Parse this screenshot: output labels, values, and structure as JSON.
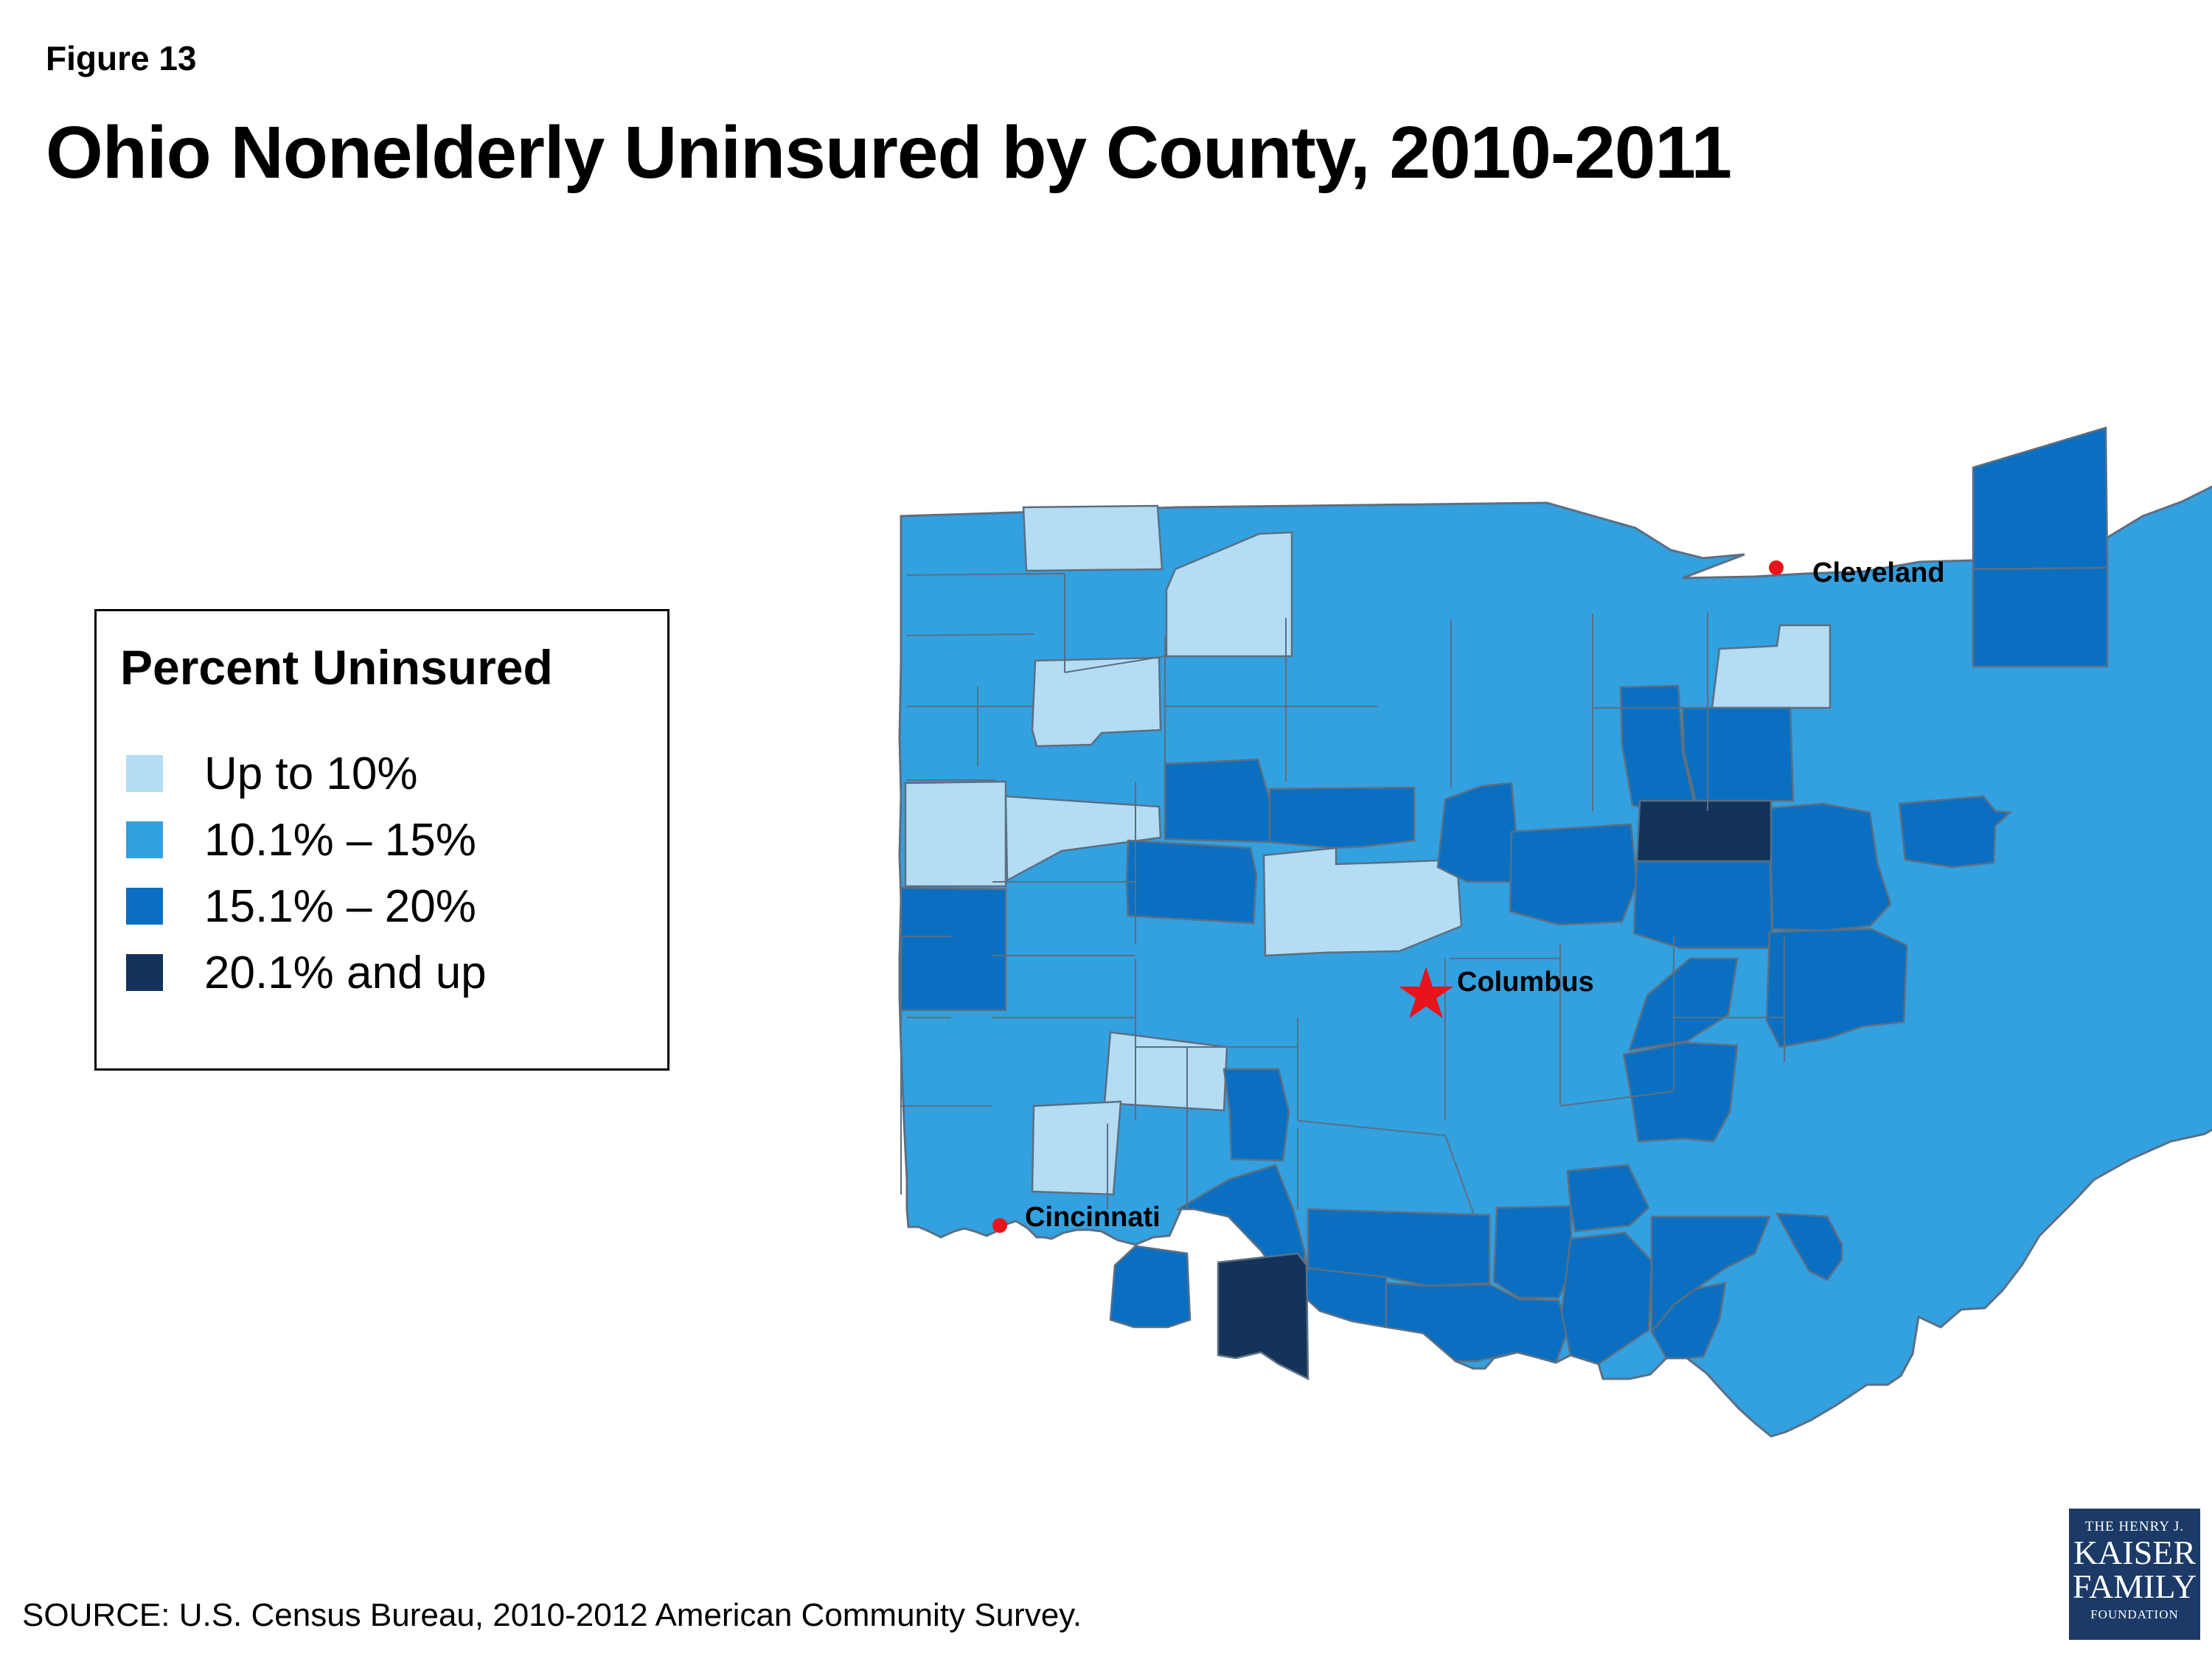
{
  "figure_label": "Figure 13",
  "title": "Ohio Nonelderly Uninsured by County, 2010-2011",
  "legend": {
    "title": "Percent Uninsured",
    "items": [
      {
        "label": "Up to 10%",
        "color": "#b4ddf3"
      },
      {
        "label": "10.1% – 15%",
        "color": "#33a0e0"
      },
      {
        "label": "15.1% – 20%",
        "color": "#0a6fc1"
      },
      {
        "label": "20.1% and up",
        "color": "#13335a"
      }
    ]
  },
  "cities": {
    "cleveland": "Cleveland",
    "columbus": "Columbus",
    "cincinnati": "Cincinnati"
  },
  "colors": {
    "border": "#5c6f82",
    "city_marker": "#e8141c",
    "logo_bg": "#1b3a67"
  },
  "source": "SOURCE: U.S. Census Bureau, 2010-2012 American Community Survey.",
  "logo": {
    "line1": "THE HENRY J.",
    "line2": "KAISER",
    "line3": "FAMILY",
    "line4": "FOUNDATION"
  }
}
